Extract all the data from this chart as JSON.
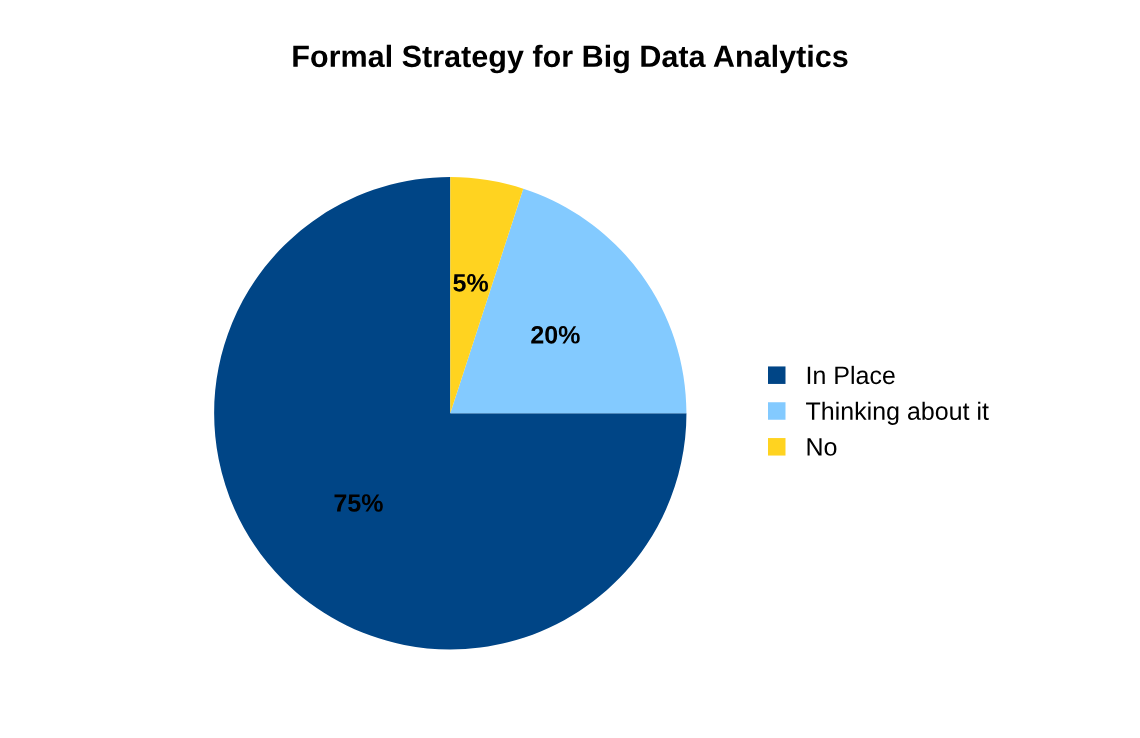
{
  "chart_data": {
    "type": "pie",
    "title": "Formal Strategy for Big Data Analytics",
    "categories": [
      "In Place",
      "Thinking about it",
      "No"
    ],
    "values": [
      75,
      20,
      5
    ],
    "colors": [
      "#004586",
      "#83caff",
      "#ffd320"
    ],
    "value_labels": [
      "75%",
      "20%",
      "5%"
    ],
    "legend": "right"
  }
}
